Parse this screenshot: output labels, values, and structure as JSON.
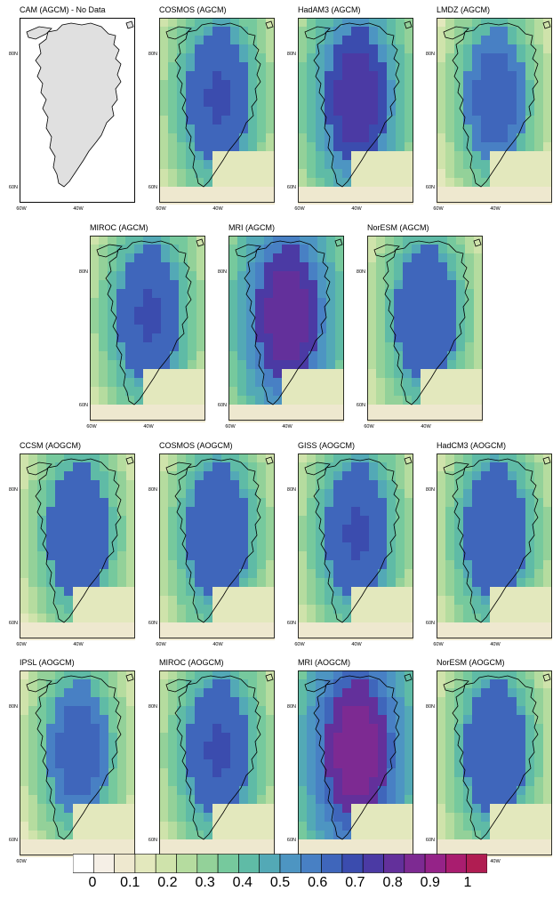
{
  "panels": [
    {
      "title": "CAM (AGCM) - No Data",
      "nodata": true,
      "intensity": 0.0
    },
    {
      "title": "COSMOS (AGCM)",
      "nodata": false,
      "intensity": 0.66
    },
    {
      "title": "HadAM3 (AGCM)",
      "nodata": false,
      "intensity": 0.72
    },
    {
      "title": "LMDZ (AGCM)",
      "nodata": false,
      "intensity": 0.62
    },
    {
      "title": "MIROC (AGCM)",
      "nodata": false,
      "intensity": 0.66
    },
    {
      "title": "MRI (AGCM)",
      "nodata": false,
      "intensity": 0.77
    },
    {
      "title": "NorESM (AGCM)",
      "nodata": false,
      "intensity": 0.64
    },
    {
      "title": "CCSM (AOGCM)",
      "nodata": false,
      "intensity": 0.63
    },
    {
      "title": "COSMOS (AOGCM)",
      "nodata": false,
      "intensity": 0.65
    },
    {
      "title": "GISS (AOGCM)",
      "nodata": false,
      "intensity": 0.66
    },
    {
      "title": "HadCM3 (AOGCM)",
      "nodata": false,
      "intensity": 0.65
    },
    {
      "title": "IPSL (AOGCM)",
      "nodata": false,
      "intensity": 0.62
    },
    {
      "title": "MIROC (AOGCM)",
      "nodata": false,
      "intensity": 0.66
    },
    {
      "title": "MRI (AOGCM)",
      "nodata": false,
      "intensity": 0.82
    },
    {
      "title": "NorESM (AOGCM)",
      "nodata": false,
      "intensity": 0.64
    }
  ],
  "axes": {
    "lat_labels": [
      "80N",
      "60N"
    ],
    "lon_labels": [
      "60W",
      "40W"
    ]
  },
  "colorbar": {
    "labels": [
      "0",
      "0.1",
      "0.2",
      "0.3",
      "0.4",
      "0.5",
      "0.6",
      "0.7",
      "0.8",
      "0.9",
      "1"
    ],
    "colors": [
      "#ffffff",
      "#f5efe6",
      "#eee8cf",
      "#e3e8bd",
      "#cfe3ab",
      "#b5dc9f",
      "#93d199",
      "#76c99d",
      "#5fbba6",
      "#53a9b6",
      "#4d95c2",
      "#4880c4",
      "#3f66bb",
      "#3b4cae",
      "#4b3aa4",
      "#63309b",
      "#7d2a92",
      "#952388",
      "#a91d6f",
      "#b01d52"
    ]
  }
}
